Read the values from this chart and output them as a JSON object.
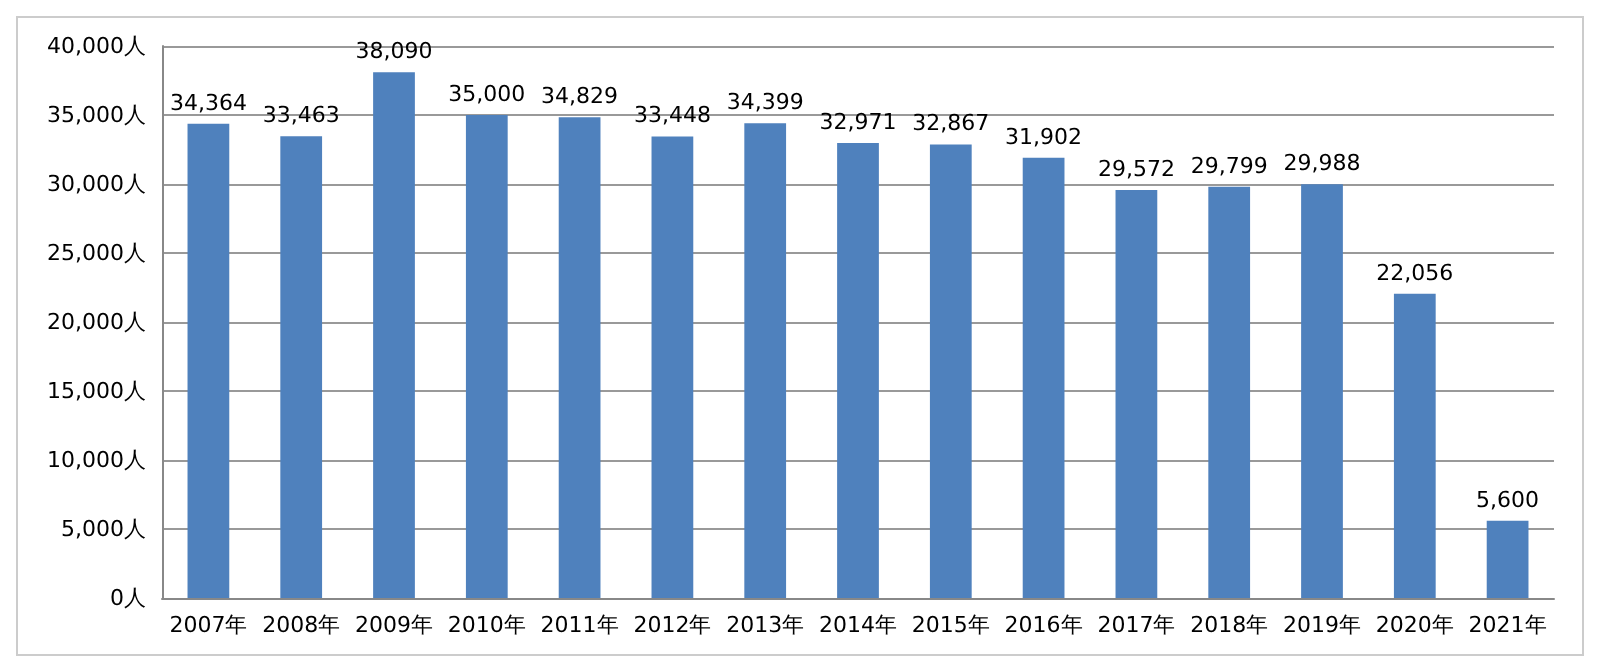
{
  "chart_data": {
    "type": "bar",
    "categories": [
      "2007年",
      "2008年",
      "2009年",
      "2010年",
      "2011年",
      "2012年",
      "2013年",
      "2014年",
      "2015年",
      "2016年",
      "2017年",
      "2018年",
      "2019年",
      "2020年",
      "2021年"
    ],
    "values": [
      34364,
      33463,
      38090,
      35000,
      34829,
      33448,
      34399,
      32971,
      32867,
      31902,
      29572,
      29799,
      29988,
      22056,
      5600
    ],
    "value_labels": [
      "34,364",
      "33,463",
      "38,090",
      "35,000",
      "34,829",
      "33,448",
      "34,399",
      "32,971",
      "32,867",
      "31,902",
      "29,572",
      "29,799",
      "29,988",
      "22,056",
      "5,600"
    ],
    "color": "#4f81bd",
    "ylim": [
      0,
      40000
    ],
    "yticks": [
      {
        "value": 0,
        "label": "0人"
      },
      {
        "value": 5000,
        "label": "5,000人"
      },
      {
        "value": 10000,
        "label": "10,000人"
      },
      {
        "value": 15000,
        "label": "15,000人"
      },
      {
        "value": 20000,
        "label": "20,000人"
      },
      {
        "value": 25000,
        "label": "25,000人"
      },
      {
        "value": 30000,
        "label": "30,000人"
      },
      {
        "value": 35000,
        "label": "35,000人"
      },
      {
        "value": 40000,
        "label": "40,000人"
      }
    ],
    "grid": "y"
  }
}
